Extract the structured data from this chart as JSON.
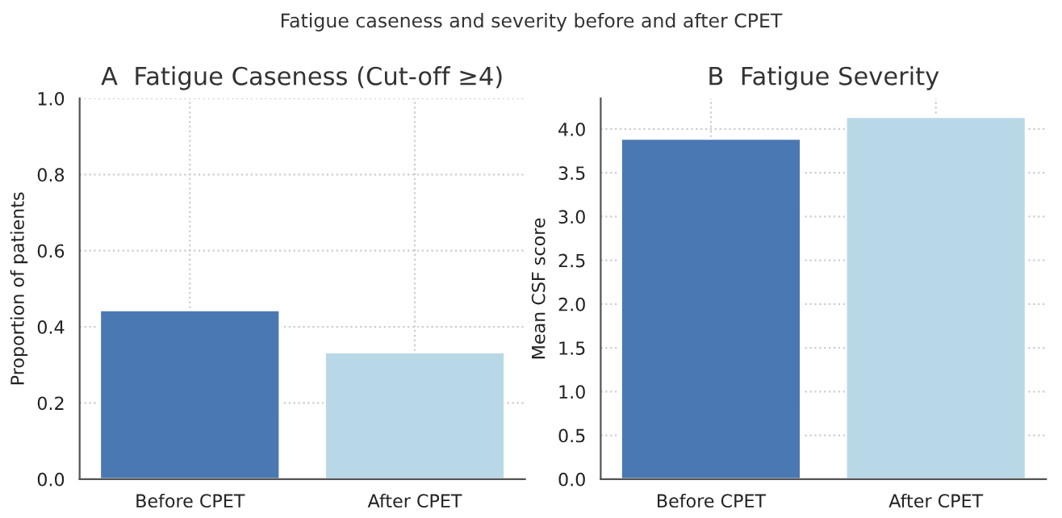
{
  "chart_data": [
    {
      "type": "bar",
      "title": "A  Fatigue Caseness (Cut-off ≥4)",
      "ylabel": "Proportion of patients",
      "annotations": [
        "Fatigue caseness and severity before and after CPET"
      ],
      "categories": [
        "Before CPET",
        "After CPET"
      ],
      "values": [
        0.444,
        0.333
      ],
      "colors": [
        "#4a78b3",
        "#b8d8e8"
      ],
      "ylim": [
        0,
        1.0
      ],
      "yticks": [
        {
          "value": 0,
          "label": "0.0"
        },
        0.2,
        0.4,
        0.6,
        0.8,
        {
          "value": 1,
          "label": "1.0"
        }
      ],
      "grid": true
    },
    {
      "type": "bar",
      "title": "B  Fatigue Severity",
      "ylabel": "Mean CSF score",
      "categories": [
        "Before CPET",
        "After CPET"
      ],
      "values": [
        3.89,
        4.14
      ],
      "colors": [
        "#4a78b3",
        "#b8d8e8"
      ],
      "ylim": [
        0,
        4.35
      ],
      "yticks": [
        {
          "value": 0,
          "label": "0.0"
        },
        0.5,
        {
          "value": 1,
          "label": "1.0"
        },
        1.5,
        {
          "value": 2,
          "label": "2.0"
        },
        2.5,
        {
          "value": 3,
          "label": "3.0"
        },
        3.5,
        {
          "value": 4,
          "label": "4.0"
        }
      ],
      "grid": true
    }
  ]
}
